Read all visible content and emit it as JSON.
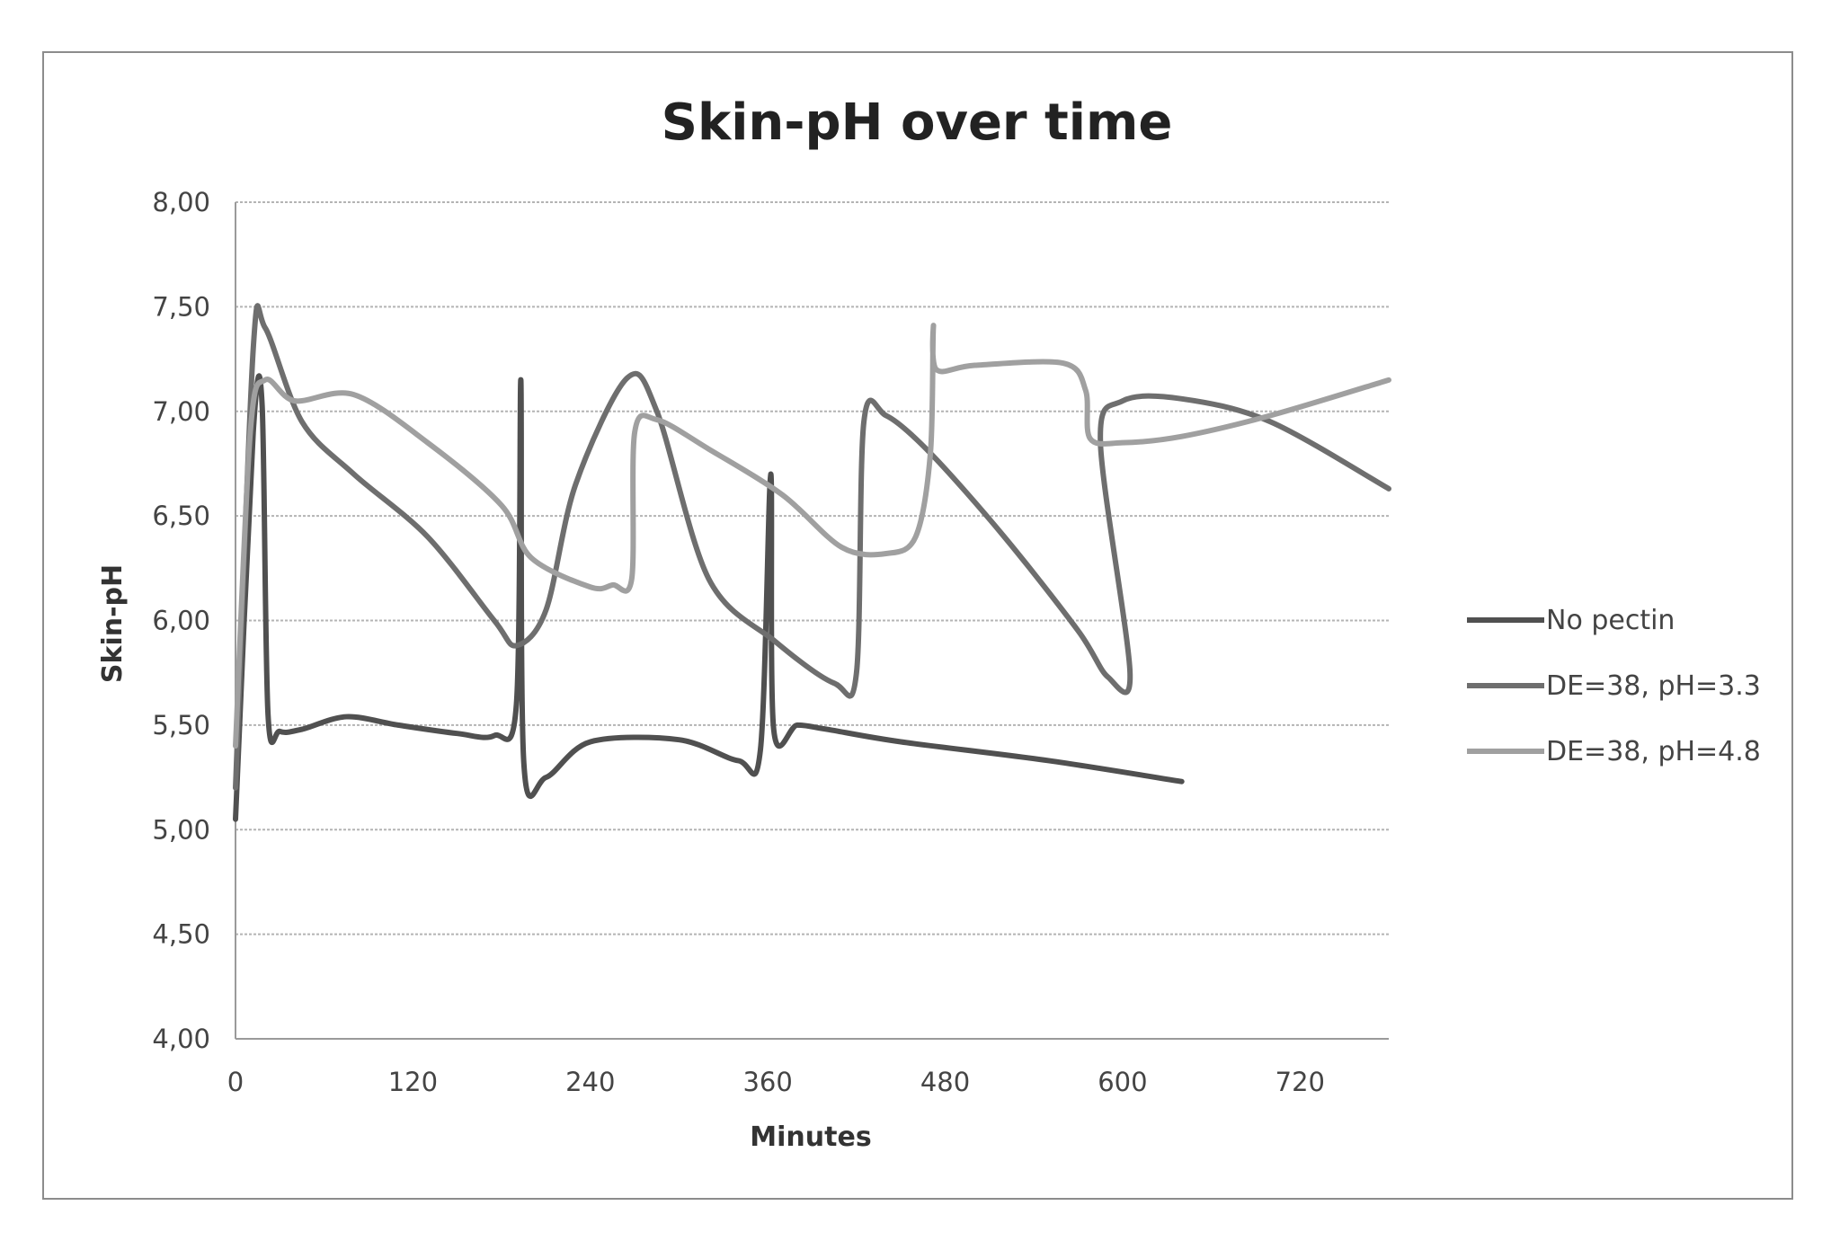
{
  "chart_data": {
    "type": "line",
    "title": "Skin-pH over time",
    "xlabel": "Minutes",
    "ylabel": "Skin-pH",
    "xlim": [
      0,
      780
    ],
    "ylim": [
      4.0,
      8.0
    ],
    "x_ticks": [
      0,
      120,
      240,
      360,
      480,
      600,
      720
    ],
    "x_tick_labels": [
      "0",
      "120",
      "240",
      "360",
      "480",
      "600",
      "720"
    ],
    "y_ticks": [
      4.0,
      4.5,
      5.0,
      5.5,
      6.0,
      6.5,
      7.0,
      7.5,
      8.0
    ],
    "y_tick_labels": [
      "4,00",
      "4,50",
      "5,00",
      "5,50",
      "6,00",
      "6,50",
      "7,00",
      "7,50",
      "8,00"
    ],
    "grid": true,
    "legend_position": "right",
    "series": [
      {
        "name": "No pectin",
        "color": "#505050",
        "points": [
          [
            0,
            5.05
          ],
          [
            12,
            6.9
          ],
          [
            18,
            7.03
          ],
          [
            22,
            5.55
          ],
          [
            30,
            5.47
          ],
          [
            45,
            5.48
          ],
          [
            75,
            5.54
          ],
          [
            110,
            5.5
          ],
          [
            150,
            5.46
          ],
          [
            175,
            5.45
          ],
          [
            190,
            5.6
          ],
          [
            193,
            7.15
          ],
          [
            195,
            5.32
          ],
          [
            210,
            5.25
          ],
          [
            240,
            5.42
          ],
          [
            300,
            5.43
          ],
          [
            340,
            5.33
          ],
          [
            355,
            5.38
          ],
          [
            362,
            6.7
          ],
          [
            364,
            5.48
          ],
          [
            380,
            5.5
          ],
          [
            400,
            5.48
          ],
          [
            450,
            5.42
          ],
          [
            550,
            5.33
          ],
          [
            640,
            5.23
          ]
        ]
      },
      {
        "name": "DE=38, pH=3.3",
        "color": "#6e6e6e",
        "points": [
          [
            0,
            5.2
          ],
          [
            12,
            7.3
          ],
          [
            20,
            7.4
          ],
          [
            45,
            6.95
          ],
          [
            80,
            6.7
          ],
          [
            130,
            6.4
          ],
          [
            175,
            6.0
          ],
          [
            190,
            5.88
          ],
          [
            210,
            6.05
          ],
          [
            230,
            6.65
          ],
          [
            265,
            7.16
          ],
          [
            285,
            7.0
          ],
          [
            320,
            6.2
          ],
          [
            365,
            5.9
          ],
          [
            405,
            5.7
          ],
          [
            420,
            5.75
          ],
          [
            425,
            6.95
          ],
          [
            440,
            6.98
          ],
          [
            470,
            6.8
          ],
          [
            520,
            6.4
          ],
          [
            570,
            5.95
          ],
          [
            590,
            5.73
          ],
          [
            605,
            5.75
          ],
          [
            585,
            6.85
          ],
          [
            600,
            7.05
          ],
          [
            640,
            7.06
          ],
          [
            700,
            6.95
          ],
          [
            780,
            6.63
          ]
        ]
      },
      {
        "name": "DE=38, pH=4.8",
        "color": "#a0a0a0",
        "points": [
          [
            0,
            5.4
          ],
          [
            10,
            6.9
          ],
          [
            20,
            7.15
          ],
          [
            40,
            7.05
          ],
          [
            80,
            7.08
          ],
          [
            130,
            6.85
          ],
          [
            180,
            6.55
          ],
          [
            200,
            6.3
          ],
          [
            240,
            6.16
          ],
          [
            255,
            6.17
          ],
          [
            268,
            6.2
          ],
          [
            270,
            6.9
          ],
          [
            285,
            6.96
          ],
          [
            320,
            6.82
          ],
          [
            370,
            6.6
          ],
          [
            410,
            6.35
          ],
          [
            440,
            6.32
          ],
          [
            460,
            6.4
          ],
          [
            470,
            6.8
          ],
          [
            472,
            7.4
          ],
          [
            474,
            7.2
          ],
          [
            500,
            7.22
          ],
          [
            560,
            7.23
          ],
          [
            575,
            7.1
          ],
          [
            578,
            6.87
          ],
          [
            600,
            6.85
          ],
          [
            640,
            6.88
          ],
          [
            700,
            6.98
          ],
          [
            780,
            7.15
          ]
        ]
      }
    ]
  }
}
